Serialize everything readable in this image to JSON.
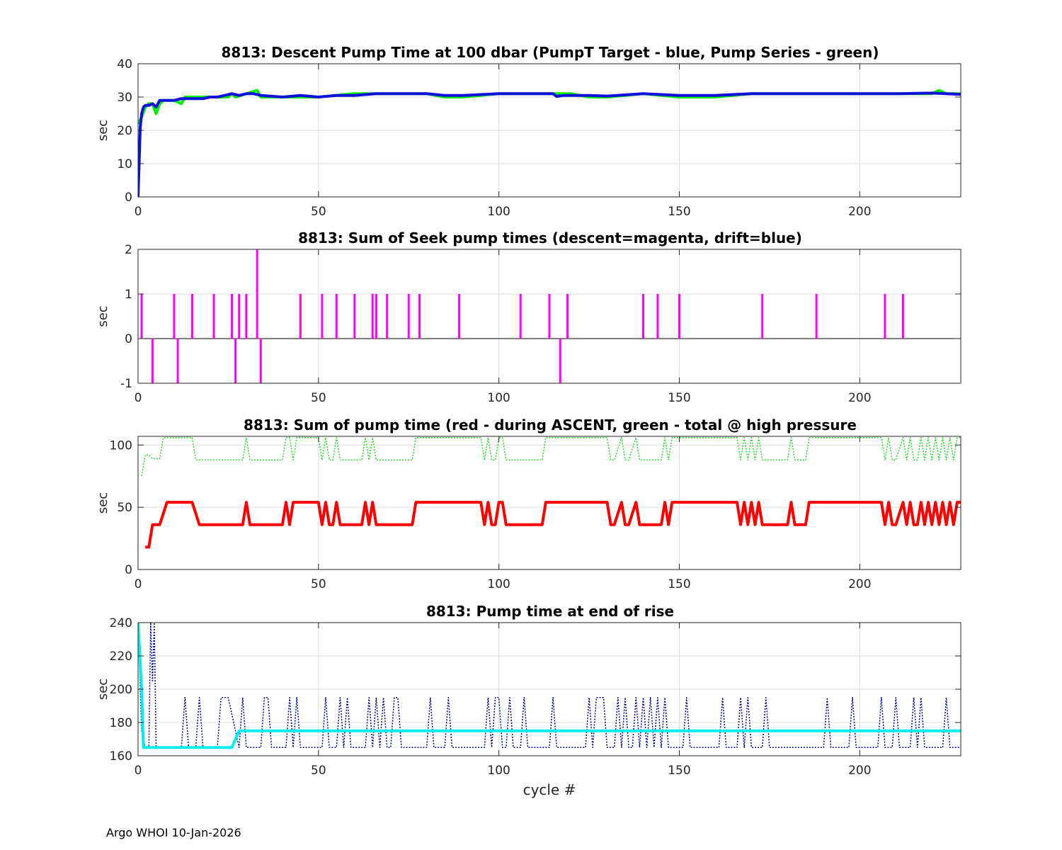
{
  "footer": "Argo WHOI 10-Jan-2026",
  "colors": {
    "green": "#00ee00",
    "blue": "#1010dd",
    "magenta": "#ff00ff",
    "red": "#ff0000",
    "lightgreen": "#22dd22",
    "cyan": "#00eeee",
    "navy": "#000099",
    "grid": "#dcdcdc",
    "axis": "#262626"
  },
  "chart_data": [
    {
      "type": "line",
      "title": "8813: Descent Pump Time at 100 dbar (PumpT Target - blue, Pump Series - green)",
      "xlabel": "",
      "ylabel": "sec",
      "xlim": [
        0,
        228
      ],
      "ylim": [
        0,
        40
      ],
      "xticks": [
        0,
        50,
        100,
        150,
        200
      ],
      "yticks": [
        0,
        10,
        20,
        30,
        40
      ],
      "grid": true,
      "series": [
        {
          "color": "green",
          "width": 4,
          "x": [
            0,
            1,
            2,
            3,
            4,
            5,
            6,
            7,
            8,
            10,
            12,
            13,
            15,
            20,
            25,
            26,
            27,
            30,
            33,
            34,
            40,
            45,
            50,
            60,
            66,
            70,
            75,
            80,
            85,
            90,
            100,
            110,
            115,
            118,
            120,
            125,
            130,
            140,
            150,
            160,
            170,
            180,
            190,
            200,
            210,
            220,
            222,
            224,
            228
          ],
          "y": [
            22,
            24,
            27,
            28,
            28,
            25,
            28,
            29,
            29,
            29,
            28,
            30,
            30,
            30,
            30,
            31,
            30,
            31,
            32,
            30,
            30,
            30,
            30,
            31,
            31,
            31,
            31,
            31,
            30,
            30,
            31,
            31,
            31,
            31,
            31,
            30,
            30,
            31,
            30,
            30,
            31,
            31,
            31,
            31,
            31,
            31,
            32,
            31,
            31
          ]
        },
        {
          "color": "blue",
          "width": 4,
          "x": [
            0,
            0.3,
            0.6,
            1,
            1.5,
            2,
            3,
            4,
            5,
            6,
            8,
            10,
            12,
            14,
            16,
            18,
            20,
            22,
            24,
            26,
            28,
            30,
            32,
            34,
            40,
            45,
            50,
            55,
            60,
            66,
            70,
            75,
            80,
            85,
            90,
            100,
            110,
            115,
            116,
            118,
            120,
            125,
            130,
            140,
            150,
            160,
            170,
            180,
            190,
            200,
            210,
            220,
            224,
            228
          ],
          "y": [
            0,
            10,
            21,
            25,
            27,
            27.5,
            27.5,
            28,
            27,
            29,
            29,
            29,
            29.5,
            29.5,
            29.5,
            29.5,
            30,
            30,
            30.5,
            31,
            30.5,
            31,
            31,
            30.5,
            30,
            30.5,
            30,
            30.5,
            30.5,
            31,
            31,
            31,
            31,
            30.5,
            30.5,
            31,
            31,
            31,
            30.2,
            30.5,
            30.5,
            30.5,
            30.3,
            31,
            30.5,
            30.5,
            31,
            31,
            31,
            31,
            31,
            31.2,
            31,
            30.8
          ]
        }
      ]
    },
    {
      "type": "bar",
      "title": "8813: Sum of Seek pump times (descent=magenta, drift=blue)",
      "xlabel": "",
      "ylabel": "sec",
      "xlim": [
        0,
        228
      ],
      "ylim": [
        -1,
        2
      ],
      "xticks": [
        0,
        50,
        100,
        150,
        200
      ],
      "yticks": [
        -1,
        0,
        1,
        2
      ],
      "grid": true,
      "series": [
        {
          "color": "magenta",
          "x": [
            1,
            4,
            10,
            11,
            15,
            21,
            26,
            27,
            28,
            30,
            33,
            34,
            45,
            51,
            55,
            60,
            65,
            66,
            69,
            75,
            78,
            89,
            106,
            114,
            117,
            119,
            140,
            144,
            150,
            173,
            188,
            207,
            212
          ],
          "y": [
            1,
            -1,
            1,
            -1,
            1,
            1,
            1,
            -1,
            1,
            1,
            2,
            -1,
            1,
            1,
            1,
            1,
            1,
            1,
            1,
            1,
            1,
            1,
            1,
            1,
            -1,
            1,
            1,
            1,
            1,
            1,
            1,
            1,
            1
          ]
        }
      ]
    },
    {
      "type": "line",
      "title": "8813: Sum of pump time (red - during ASCENT, green - total @ high pressure",
      "xlabel": "",
      "ylabel": "sec",
      "xlim": [
        0,
        228
      ],
      "ylim": [
        0,
        107
      ],
      "xticks": [
        0,
        50,
        100,
        150,
        200
      ],
      "yticks": [
        0,
        50,
        100
      ],
      "grid": true,
      "series": [
        {
          "color": "lightgreen",
          "width": 1.5,
          "dash": "2,2",
          "x": [
            1,
            2,
            3,
            4,
            5,
            6,
            7,
            8,
            15,
            16,
            17,
            29,
            30,
            31,
            40,
            41,
            42,
            43,
            44,
            50,
            51,
            52,
            53,
            54,
            55,
            56,
            57,
            62,
            63,
            64,
            65,
            66,
            76,
            77,
            95,
            96,
            97,
            98,
            99,
            100,
            101,
            102,
            112,
            113,
            130,
            131,
            132,
            134,
            135,
            136,
            138,
            139,
            140,
            145,
            146,
            147,
            148,
            149,
            150,
            166,
            167,
            168,
            169,
            170,
            171,
            172,
            173,
            174,
            180,
            181,
            182,
            185,
            186,
            187,
            188,
            206,
            207,
            208,
            209,
            210,
            212,
            213,
            214,
            215,
            216,
            217,
            218,
            219,
            220,
            221,
            222,
            223,
            224,
            225,
            226,
            227,
            228
          ],
          "y": [
            75,
            92,
            92,
            89,
            89,
            89,
            106,
            106,
            106,
            88,
            88,
            88,
            106,
            88,
            88,
            106,
            106,
            88,
            106,
            106,
            88,
            106,
            88,
            88,
            106,
            88,
            88,
            88,
            106,
            88,
            106,
            88,
            88,
            106,
            106,
            88,
            106,
            88,
            88,
            106,
            106,
            88,
            88,
            106,
            106,
            88,
            88,
            106,
            88,
            88,
            106,
            88,
            88,
            88,
            106,
            88,
            106,
            106,
            106,
            106,
            88,
            106,
            88,
            106,
            88,
            106,
            88,
            88,
            88,
            106,
            88,
            88,
            106,
            106,
            106,
            106,
            88,
            106,
            88,
            88,
            106,
            88,
            106,
            88,
            88,
            106,
            88,
            106,
            88,
            106,
            88,
            106,
            88,
            106,
            88,
            106,
            106
          ]
        },
        {
          "color": "red",
          "width": 4,
          "x": [
            2,
            3,
            4,
            5,
            6,
            7,
            8,
            15,
            16,
            17,
            29,
            30,
            31,
            40,
            41,
            42,
            43,
            44,
            50,
            51,
            52,
            53,
            54,
            55,
            56,
            57,
            62,
            63,
            64,
            65,
            66,
            76,
            77,
            95,
            96,
            97,
            98,
            99,
            100,
            101,
            102,
            112,
            113,
            130,
            131,
            132,
            134,
            135,
            136,
            138,
            139,
            140,
            145,
            146,
            147,
            148,
            149,
            150,
            166,
            167,
            168,
            169,
            170,
            171,
            172,
            173,
            174,
            180,
            181,
            182,
            185,
            186,
            187,
            188,
            206,
            207,
            208,
            209,
            210,
            212,
            213,
            214,
            215,
            216,
            217,
            218,
            219,
            220,
            221,
            222,
            223,
            224,
            225,
            226,
            227,
            228
          ],
          "y": [
            18,
            18,
            36,
            36,
            36,
            45,
            54,
            54,
            45,
            36,
            36,
            54,
            36,
            36,
            54,
            36,
            54,
            54,
            54,
            36,
            54,
            36,
            36,
            54,
            36,
            36,
            36,
            54,
            36,
            54,
            36,
            36,
            54,
            54,
            36,
            54,
            36,
            36,
            54,
            54,
            36,
            36,
            54,
            54,
            36,
            36,
            54,
            36,
            36,
            54,
            36,
            36,
            36,
            54,
            36,
            54,
            54,
            54,
            54,
            36,
            54,
            36,
            54,
            36,
            54,
            36,
            36,
            36,
            54,
            36,
            36,
            54,
            54,
            54,
            54,
            36,
            54,
            36,
            36,
            54,
            36,
            54,
            36,
            36,
            54,
            36,
            54,
            36,
            54,
            36,
            54,
            36,
            54,
            36,
            54,
            54
          ]
        }
      ]
    },
    {
      "type": "line",
      "title": "8813: Pump time at end of rise",
      "xlabel": "cycle #",
      "ylabel": "sec",
      "xlim": [
        0,
        228
      ],
      "ylim": [
        160,
        240
      ],
      "xticks": [
        0,
        50,
        100,
        150,
        200
      ],
      "yticks": [
        160,
        180,
        200,
        220,
        240
      ],
      "grid": true,
      "series": [
        {
          "color": "navy",
          "width": 1.5,
          "dash": "2,2",
          "x": [
            0,
            1,
            2,
            3,
            3.5,
            4,
            4.5,
            5,
            12,
            13,
            14,
            16,
            17,
            18,
            22,
            23,
            24,
            25,
            28,
            29,
            30,
            34,
            35,
            36,
            37,
            41,
            42,
            43,
            44,
            45,
            46,
            51,
            52,
            53,
            55,
            56,
            57,
            58,
            59,
            60,
            63,
            64,
            65,
            66,
            67,
            68,
            69,
            70,
            71,
            72,
            73,
            80,
            81,
            82,
            85,
            86,
            87,
            96,
            97,
            98,
            99,
            100,
            101,
            102,
            103,
            104,
            106,
            107,
            108,
            114,
            115,
            116,
            124,
            125,
            126,
            127,
            128,
            129,
            130,
            132,
            133,
            134,
            135,
            136,
            137,
            138,
            139,
            140,
            141,
            142,
            143,
            144,
            145,
            146,
            147,
            148,
            151,
            152,
            153,
            161,
            162,
            163,
            166,
            167,
            168,
            169,
            170,
            173,
            174,
            175,
            190,
            191,
            192,
            197,
            198,
            199,
            205,
            206,
            207,
            209,
            210,
            211,
            214,
            215,
            216,
            217,
            218,
            223,
            224,
            225,
            228
          ],
          "y": [
            240,
            175,
            165,
            165,
            240,
            205,
            240,
            165,
            165,
            195,
            165,
            165,
            195,
            165,
            165,
            195,
            195,
            195,
            165,
            195,
            165,
            165,
            195,
            195,
            165,
            165,
            195,
            165,
            195,
            165,
            165,
            165,
            195,
            165,
            165,
            195,
            165,
            195,
            165,
            165,
            165,
            195,
            165,
            195,
            165,
            195,
            165,
            165,
            195,
            195,
            165,
            165,
            195,
            165,
            165,
            195,
            165,
            165,
            195,
            165,
            195,
            195,
            165,
            165,
            195,
            165,
            165,
            195,
            165,
            165,
            195,
            165,
            165,
            195,
            165,
            195,
            195,
            195,
            165,
            165,
            195,
            165,
            195,
            165,
            165,
            195,
            165,
            195,
            165,
            195,
            165,
            195,
            165,
            195,
            165,
            165,
            165,
            195,
            165,
            165,
            195,
            165,
            165,
            195,
            165,
            195,
            165,
            165,
            195,
            165,
            165,
            195,
            165,
            165,
            195,
            165,
            165,
            195,
            165,
            165,
            195,
            165,
            165,
            195,
            165,
            195,
            165,
            165,
            195,
            165,
            165
          ]
        },
        {
          "color": "cyan",
          "width": 4,
          "x": [
            0,
            1,
            1.5,
            2,
            5,
            10,
            20,
            26,
            27,
            28,
            30,
            50,
            100,
            150,
            200,
            228
          ],
          "y": [
            240,
            200,
            165,
            165,
            165,
            165,
            165,
            165,
            170,
            175,
            175,
            175,
            175,
            175,
            175,
            175
          ]
        }
      ]
    }
  ]
}
